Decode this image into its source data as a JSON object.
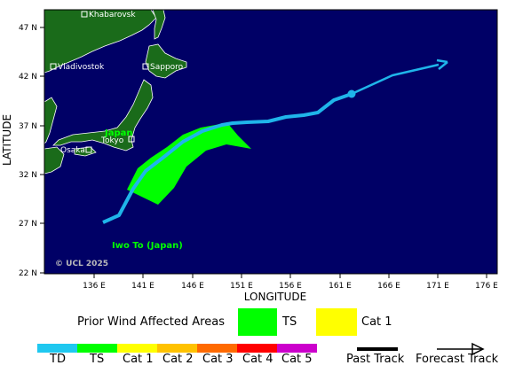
{
  "map": {
    "colors": {
      "ocean": "#000066",
      "land": "#1a6b1a",
      "land_border": "#ffffff",
      "track": "#1fb5ea",
      "ts_area": "#00ff00",
      "cat1_area": "#ffff00",
      "city_label": "#ffffff",
      "country_label": "#00ff00"
    },
    "axes": {
      "x_title": "LONGITUDE",
      "y_title": "LATITUDE",
      "x_ticks": [
        "136 E",
        "141 E",
        "146 E",
        "151 E",
        "156 E",
        "161 E",
        "166 E",
        "171 E",
        "176 E"
      ],
      "y_ticks": [
        "47 N",
        "42 N",
        "37 N",
        "32 N",
        "27 N",
        "22 N"
      ]
    },
    "cities": [
      {
        "name": "Khabarovsk",
        "lon": 135.1,
        "lat": 48.5
      },
      {
        "name": "Vladivostok",
        "lon": 131.9,
        "lat": 43.1
      },
      {
        "name": "Sapporo",
        "lon": 141.4,
        "lat": 43.1
      },
      {
        "name": "Tokyo",
        "lon": 139.7,
        "lat": 35.7
      },
      {
        "name": "Osaka",
        "lon": 135.5,
        "lat": 34.7
      }
    ],
    "country_label": "Japan",
    "island_label": "Iwo To (Japan)",
    "copyright": "© UCL 2025"
  },
  "legend": {
    "prior_wind_title": "Prior Wind Affected Areas",
    "prior_ts": "TS",
    "prior_cat1": "Cat 1",
    "scale": [
      {
        "label": "TD",
        "color": "#1fc8f0"
      },
      {
        "label": "TS",
        "color": "#00ff00"
      },
      {
        "label": "Cat 1",
        "color": "#ffff00"
      },
      {
        "label": "Cat 2",
        "color": "#ffc200"
      },
      {
        "label": "Cat 3",
        "color": "#ff6a00"
      },
      {
        "label": "Cat 4",
        "color": "#ff0000"
      },
      {
        "label": "Cat 5",
        "color": "#cc00cc"
      }
    ],
    "past_track": "Past Track",
    "forecast_track": "Forecast Track"
  }
}
